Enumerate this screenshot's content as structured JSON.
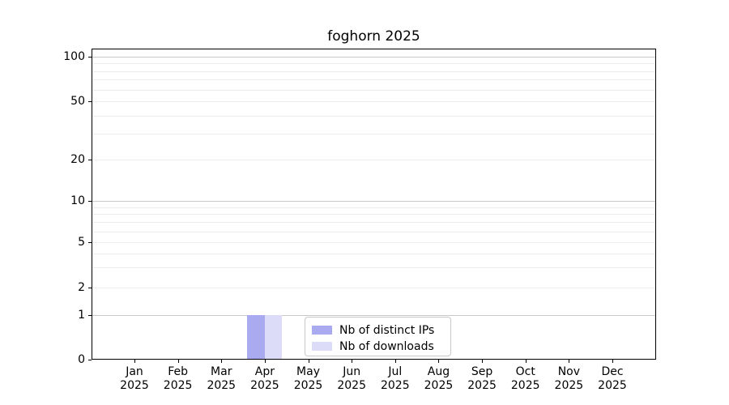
{
  "chart_data": {
    "type": "bar",
    "title": "foghorn 2025",
    "categories": [
      "Jan 2025",
      "Feb 2025",
      "Mar 2025",
      "Apr 2025",
      "May 2025",
      "Jun 2025",
      "Jul 2025",
      "Aug 2025",
      "Sep 2025",
      "Oct 2025",
      "Nov 2025",
      "Dec 2025"
    ],
    "series": [
      {
        "name": "Nb of distinct IPs",
        "color": "#aaaaf0",
        "values": [
          0,
          0,
          0,
          1,
          0,
          0,
          0,
          0,
          0,
          0,
          0,
          0
        ]
      },
      {
        "name": "Nb of downloads",
        "color": "#dcdcf8",
        "values": [
          0,
          0,
          0,
          1,
          0,
          0,
          0,
          0,
          0,
          0,
          0,
          0
        ]
      }
    ],
    "xlabel": "",
    "ylabel": "",
    "yticks": [
      0,
      1,
      2,
      5,
      10,
      20,
      50,
      100
    ],
    "minor_grid_values": [
      3,
      4,
      6,
      7,
      8,
      9,
      30,
      40,
      60,
      70,
      80,
      90
    ],
    "major_grid_values": [
      1,
      10,
      100
    ],
    "ylim": [
      0,
      113
    ],
    "yscale": "symlog",
    "grid": "horizontal",
    "legend_position": "lower center",
    "colors": {
      "major_grid": "#c9c9c9",
      "minor_grid": "#ededed",
      "spine": "#000000",
      "background": "#ffffff"
    }
  }
}
